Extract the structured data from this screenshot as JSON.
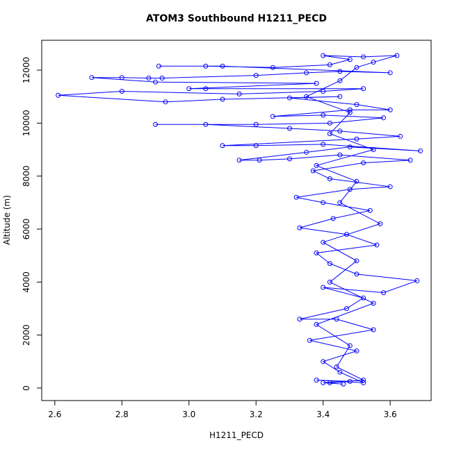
{
  "chart_data": {
    "type": "line",
    "marker": "circle",
    "title": "ATOM3 Southbound H1211_PECD",
    "x_label": "H1211_PECD",
    "y_label": "Altitude (m)",
    "color": "#0000ff",
    "x": [
      3.42,
      3.48,
      3.38,
      3.52,
      3.45,
      3.4,
      3.5,
      3.36,
      3.55,
      3.44,
      3.33,
      3.47,
      3.52,
      3.4,
      3.58,
      3.68,
      3.5,
      3.42,
      3.38,
      3.56,
      3.47,
      3.33,
      3.43,
      3.54,
      3.4,
      3.32,
      3.48,
      3.6,
      3.42,
      3.37,
      3.52,
      3.66,
      3.45,
      3.3,
      3.21,
      3.15,
      3.35,
      3.48,
      3.69,
      3.4,
      3.2,
      3.1,
      3.5,
      3.63,
      3.45,
      3.3,
      3.05,
      2.9,
      3.2,
      3.42,
      3.58,
      3.4,
      3.25,
      3.48,
      3.6,
      3.5,
      3.3,
      3.45,
      3.1,
      2.93,
      2.61,
      2.8,
      3.15,
      3.4,
      3.52,
      3.05,
      3.0,
      3.38,
      2.9,
      2.71,
      2.8,
      2.88,
      2.92,
      3.2,
      3.35,
      3.45,
      3.6,
      3.1,
      2.91,
      3.05,
      3.25,
      3.42,
      3.48,
      3.4,
      3.52,
      3.62,
      3.55,
      3.5,
      3.45,
      3.35,
      3.48,
      3.42,
      3.55,
      3.38,
      3.5,
      3.45,
      3.57,
      3.4,
      3.5,
      3.42,
      3.55,
      3.38,
      3.48,
      3.44,
      3.52,
      3.4,
      3.46
    ],
    "values": [
      200,
      250,
      300,
      200,
      600,
      1000,
      1400,
      1800,
      2200,
      2600,
      2600,
      3000,
      3400,
      3800,
      3600,
      4050,
      4300,
      4700,
      5100,
      5400,
      5800,
      6050,
      6400,
      6700,
      7000,
      7200,
      7500,
      7600,
      7900,
      8200,
      8500,
      8600,
      8800,
      8650,
      8600,
      8600,
      8900,
      9100,
      8950,
      9200,
      9150,
      9150,
      9400,
      9500,
      9700,
      9800,
      9950,
      9950,
      9950,
      10000,
      10200,
      10300,
      10250,
      10500,
      10500,
      10700,
      10950,
      11000,
      10900,
      10800,
      11050,
      11200,
      11100,
      11200,
      11300,
      11300,
      11300,
      11500,
      11550,
      11720,
      11720,
      11700,
      11700,
      11800,
      11900,
      11950,
      11900,
      12150,
      12150,
      12150,
      12100,
      12200,
      12400,
      12550,
      12500,
      12550,
      12300,
      12100,
      11600,
      11000,
      10400,
      9600,
      9000,
      8400,
      7800,
      7000,
      6200,
      5500,
      4800,
      4000,
      3200,
      2400,
      1600,
      800,
      300,
      200,
      150
    ],
    "xlim": [
      2.561,
      3.722
    ],
    "ylim": [
      -472,
      13127
    ],
    "xticks": [
      2.6,
      2.8,
      {
        "value": 3,
        "label": "3.0"
      },
      3.2,
      3.4,
      3.6
    ],
    "yticks": [
      0,
      2000,
      4000,
      6000,
      8000,
      10000,
      12000
    ]
  }
}
